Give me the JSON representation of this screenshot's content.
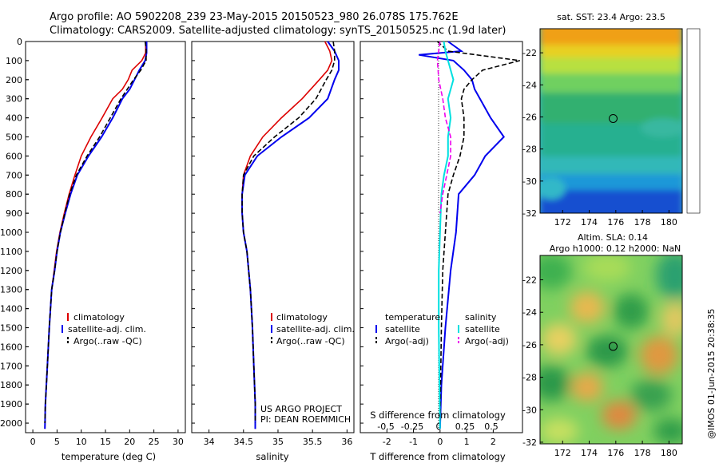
{
  "title_line1": "Argo profile: AO 5902208_239 23-May-2015 20150523_980 26.078S 175.762E",
  "title_line2": "Climatology: CARS2009. Satellite-adjusted climatology: synTS_20150525.nc (1.9d later)",
  "project_line1": "US ARGO PROJECT",
  "project_line2": "PI: DEAN ROEMMICH",
  "side_stamp": "@IMOS 01-Jun-2015 20:38:35",
  "colors": {
    "climatology": "#dd0000",
    "satellite": "#0000ee",
    "argo": "#000000",
    "sal_satellite": "#00e0e0",
    "sal_argo": "#ee00ee"
  },
  "chart_data": [
    {
      "type": "line",
      "id": "temperature",
      "xlabel": "temperature (deg C)",
      "ylabel": "",
      "xlim": [
        -1.5,
        31.5
      ],
      "ylim": [
        2050,
        0
      ],
      "xticks": [
        0,
        5,
        10,
        15,
        20,
        25,
        30
      ],
      "yticks": [
        0,
        100,
        200,
        300,
        400,
        500,
        600,
        700,
        800,
        900,
        1000,
        1100,
        1200,
        1300,
        1400,
        1500,
        1600,
        1700,
        1800,
        1900,
        2000
      ],
      "legend": [
        "climatology",
        "satellite-adj. clim.",
        "Argo(..raw -QC)"
      ],
      "series": [
        {
          "name": "climatology",
          "color": "#dd0000",
          "x": [
            23.3,
            23.3,
            22.5,
            20.5,
            19.7,
            18.5,
            16.5,
            14.3,
            12.0,
            10.0,
            8.7,
            7.5,
            6.5,
            5.6,
            4.9,
            4.4,
            3.9,
            3.4,
            3.0,
            2.6,
            2.5
          ],
          "y": [
            0,
            60,
            100,
            150,
            200,
            250,
            300,
            400,
            500,
            600,
            700,
            800,
            900,
            1000,
            1100,
            1200,
            1300,
            1500,
            1700,
            1900,
            2030
          ]
        },
        {
          "name": "satellite-adj. clim.",
          "color": "#0000ee",
          "x": [
            23.5,
            23.5,
            23.2,
            22.0,
            21.0,
            20.0,
            18.5,
            16.5,
            14.2,
            11.5,
            9.2,
            7.8,
            6.7,
            5.7,
            5.0,
            4.5,
            3.9,
            3.4,
            3.0,
            2.6,
            2.5
          ],
          "y": [
            0,
            60,
            100,
            150,
            200,
            250,
            300,
            400,
            500,
            600,
            700,
            800,
            900,
            1000,
            1100,
            1200,
            1300,
            1500,
            1700,
            1900,
            2030
          ]
        },
        {
          "name": "Argo(..raw -QC)",
          "color": "#000000",
          "x": [
            23.2,
            23.4,
            23.4,
            22.3,
            20.8,
            19.5,
            18.2,
            16.0,
            13.8,
            11.2,
            9.0,
            7.6,
            6.6,
            5.7,
            5.0,
            4.5,
            3.9,
            3.4,
            3.0,
            2.6,
            2.5
          ],
          "y": [
            0,
            40,
            100,
            150,
            200,
            250,
            300,
            400,
            500,
            600,
            700,
            800,
            900,
            1000,
            1100,
            1200,
            1300,
            1500,
            1700,
            1900,
            2000
          ]
        }
      ]
    },
    {
      "type": "line",
      "id": "salinity",
      "xlabel": "salinity",
      "ylabel": "",
      "xlim": [
        33.75,
        36.1
      ],
      "ylim": [
        2050,
        0
      ],
      "xticks": [
        34,
        34.5,
        35,
        35.5,
        36
      ],
      "legend": [
        "climatology",
        "satellite-adj. clim.",
        "Argo(..raw -QC)"
      ],
      "series": [
        {
          "name": "climatology",
          "color": "#dd0000",
          "x": [
            35.68,
            35.75,
            35.78,
            35.72,
            35.6,
            35.35,
            35.05,
            34.78,
            34.6,
            34.5,
            34.48,
            34.48,
            34.5,
            34.55,
            34.6,
            34.63,
            34.65,
            34.67,
            34.67
          ],
          "y": [
            0,
            50,
            100,
            150,
            200,
            300,
            400,
            500,
            600,
            700,
            800,
            900,
            1000,
            1100,
            1300,
            1500,
            1700,
            1900,
            2030
          ]
        },
        {
          "name": "satellite-adj. clim.",
          "color": "#0000ee",
          "x": [
            35.72,
            35.82,
            35.88,
            35.88,
            35.82,
            35.72,
            35.45,
            35.05,
            34.7,
            34.52,
            34.48,
            34.48,
            34.5,
            34.55,
            34.6,
            34.63,
            34.65,
            34.67,
            34.67
          ],
          "y": [
            0,
            50,
            100,
            150,
            200,
            300,
            400,
            500,
            600,
            700,
            800,
            900,
            1000,
            1100,
            1300,
            1500,
            1700,
            1900,
            2030
          ]
        },
        {
          "name": "Argo(..raw -QC)",
          "color": "#000000",
          "x": [
            35.8,
            35.82,
            35.82,
            35.78,
            35.7,
            35.55,
            35.3,
            34.95,
            34.65,
            34.5,
            34.48,
            34.48,
            34.5,
            34.55,
            34.6,
            34.63,
            34.65,
            34.67,
            34.67
          ],
          "y": [
            0,
            50,
            100,
            150,
            200,
            300,
            400,
            500,
            600,
            700,
            800,
            900,
            1000,
            1100,
            1300,
            1500,
            1700,
            1900,
            2000
          ]
        }
      ]
    },
    {
      "type": "line",
      "id": "difference",
      "xlabel": "T difference from climatology",
      "xlabel_top": "S difference from climatology",
      "xlim": [
        -3.0,
        3.1
      ],
      "ylim": [
        2050,
        0
      ],
      "xticks": [
        -2,
        -1,
        0,
        1,
        2
      ],
      "xticks_salinity": [
        -0.5,
        -0.25,
        0,
        0.25,
        0.5
      ],
      "legend_temperature_title": "temperature",
      "legend_salinity_title": "salinity",
      "legend_temperature": [
        "satellite",
        "Argo(-adj)"
      ],
      "legend_salinity": [
        "satellite",
        "Argo(-adj)"
      ],
      "series": [
        {
          "name": "T satellite",
          "color": "#0000ee",
          "x": [
            0.3,
            0.8,
            -0.8,
            0.5,
            0.9,
            1.2,
            1.3,
            1.5,
            1.9,
            2.4,
            1.7,
            1.3,
            0.7,
            0.6,
            0.4,
            0.2,
            0.05,
            0.0
          ],
          "y": [
            0,
            50,
            70,
            100,
            150,
            200,
            250,
            300,
            400,
            500,
            600,
            700,
            800,
            1000,
            1200,
            1500,
            1800,
            2030
          ]
        },
        {
          "name": "T Argo(-adj)",
          "color": "#000000",
          "x": [
            -0.1,
            0.3,
            3.0,
            1.6,
            1.2,
            0.9,
            0.8,
            0.9,
            0.9,
            0.75,
            0.5,
            0.3,
            0.2,
            0.1,
            0.05,
            0.0
          ],
          "y": [
            0,
            50,
            100,
            150,
            200,
            250,
            300,
            400,
            500,
            600,
            700,
            800,
            1000,
            1200,
            1500,
            2000
          ]
        },
        {
          "name": "S satellite",
          "color": "#00e0e0",
          "x": [
            0.14,
            0.2,
            0.3,
            0.5,
            0.3,
            0.4,
            0.3,
            0.3,
            0.15,
            0.05,
            0.0,
            -0.05,
            -0.05,
            0.0
          ],
          "y": [
            0,
            50,
            100,
            200,
            300,
            400,
            500,
            600,
            700,
            800,
            1000,
            1200,
            1500,
            2030
          ]
        },
        {
          "name": "S Argo(-adj)",
          "color": "#ee00ee",
          "x": [
            0.0,
            -0.1,
            -0.05,
            0.1,
            0.2,
            0.4,
            0.4,
            0.25,
            0.1,
            0.0
          ],
          "y": [
            0,
            100,
            200,
            300,
            400,
            500,
            600,
            700,
            800,
            900
          ]
        }
      ]
    },
    {
      "type": "heatmap",
      "id": "sst-map",
      "title": "sat. SST: 23.4  Argo: 23.5",
      "xlim": [
        170.3,
        181.0
      ],
      "ylim": [
        -32.0,
        -20.5
      ],
      "xticks": [
        172,
        174,
        176,
        178,
        180
      ],
      "yticks": [
        -22,
        -24,
        -26,
        -28,
        -30,
        -32
      ],
      "marker": [
        175.8,
        -26.1
      ]
    },
    {
      "type": "heatmap",
      "id": "sla-map",
      "title_line1": "Altim. SLA: 0.14",
      "title_line2": "Argo h1000: 0.12 h2000: NaN",
      "xlim": [
        170.3,
        181.0
      ],
      "ylim": [
        -32.1,
        -20.5
      ],
      "xticks": [
        172,
        174,
        176,
        178,
        180
      ],
      "yticks": [
        -22,
        -24,
        -26,
        -28,
        -30,
        -32
      ],
      "marker": [
        175.8,
        -26.1
      ]
    }
  ]
}
